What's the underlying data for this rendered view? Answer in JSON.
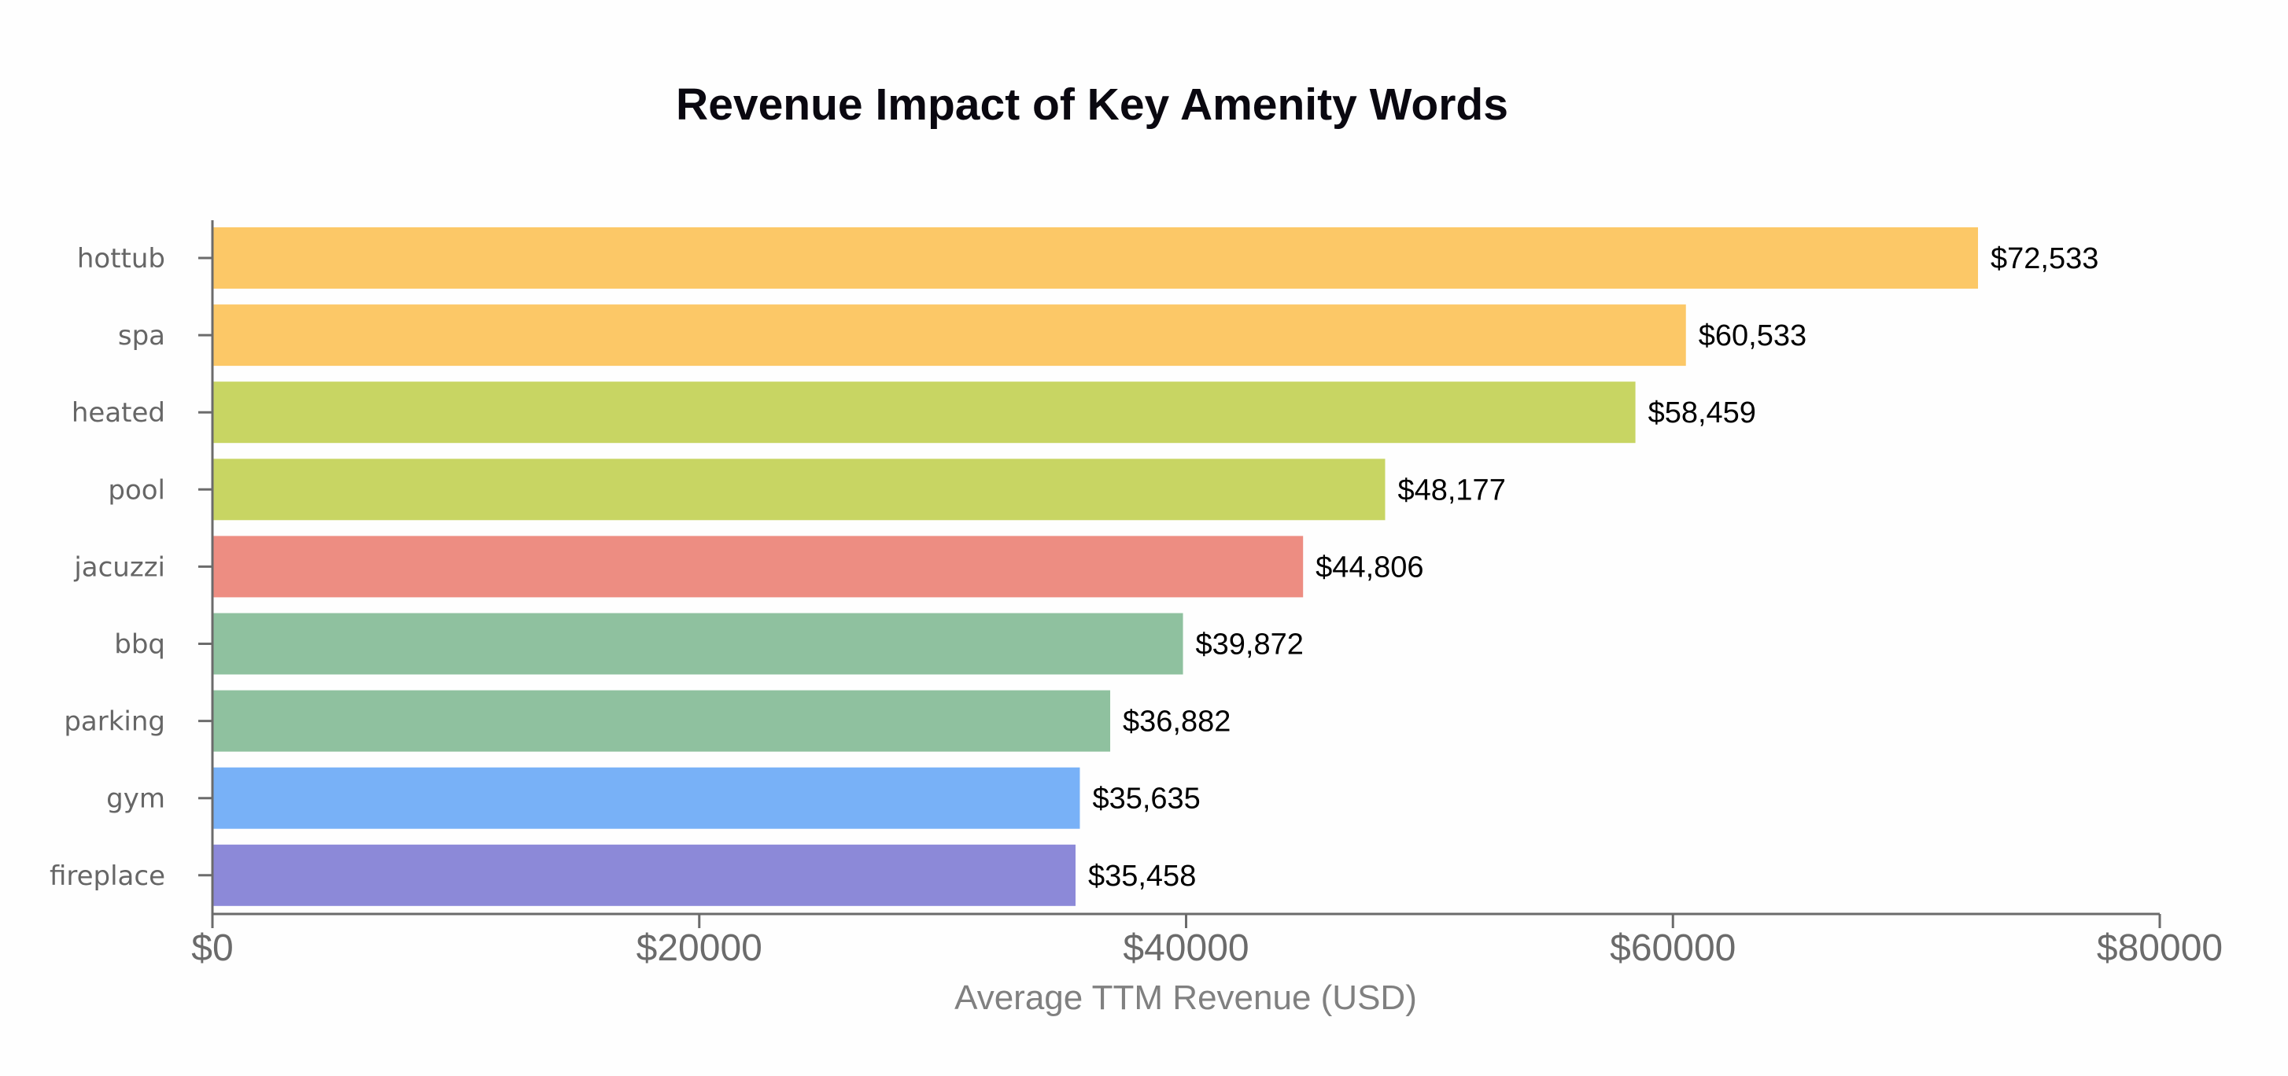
{
  "chart_data": {
    "type": "bar",
    "orientation": "horizontal",
    "title": "Revenue Impact of Key Amenity Words",
    "xlabel": "Average TTM Revenue (USD)",
    "ylabel": "",
    "xlim": [
      0,
      80000
    ],
    "grid": false,
    "legend": "none",
    "x_ticks": [
      {
        "value": 0,
        "label": "$0"
      },
      {
        "value": 20000,
        "label": "$20000"
      },
      {
        "value": 40000,
        "label": "$40000"
      },
      {
        "value": 60000,
        "label": "$60000"
      },
      {
        "value": 80000,
        "label": "$80000"
      }
    ],
    "categories": [
      "hottub",
      "spa",
      "heated",
      "pool",
      "jacuzzi",
      "bbq",
      "parking",
      "gym",
      "fireplace"
    ],
    "values": [
      72533,
      60533,
      58459,
      48177,
      44806,
      39872,
      36882,
      35635,
      35458
    ],
    "value_labels": [
      "$72,533",
      "$60,533",
      "$58,459",
      "$48,177",
      "$44,806",
      "$39,872",
      "$36,882",
      "$35,635",
      "$35,458"
    ],
    "colors": [
      "#fcc867",
      "#fcc867",
      "#c8d563",
      "#c8d563",
      "#ed8d82",
      "#8fc19f",
      "#8fc19f",
      "#78b1f7",
      "#8c89d8"
    ]
  }
}
